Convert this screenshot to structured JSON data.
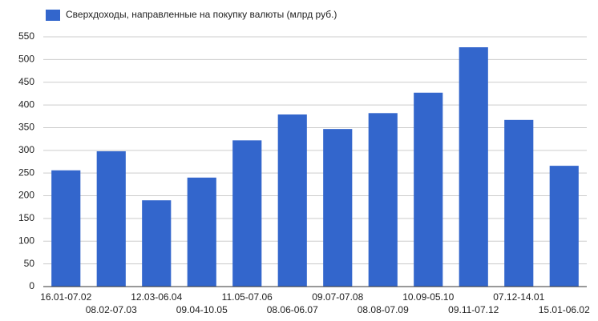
{
  "chart_data": {
    "type": "bar",
    "series": [
      {
        "name": "Сверхдоходы, направленные на покупку валюты (млрд руб.)",
        "color": "#3366cc",
        "values": [
          256,
          298,
          190,
          240,
          322,
          379,
          347,
          382,
          427,
          527,
          367,
          266
        ]
      }
    ],
    "categories": [
      "16.01-07.02",
      "08.02-07.03",
      "12.03-06.04",
      "09.04-10.05",
      "11.05-07.06",
      "08.06-06.07",
      "09.07-07.08",
      "08.08-07.09",
      "10.09-05.10",
      "09.11-07.12",
      "07.12-14.01",
      "15.01-06.02"
    ],
    "ylim": [
      0,
      550
    ],
    "yticks": [
      0,
      50,
      100,
      150,
      200,
      250,
      300,
      350,
      400,
      450,
      500,
      550
    ],
    "grid": true
  }
}
